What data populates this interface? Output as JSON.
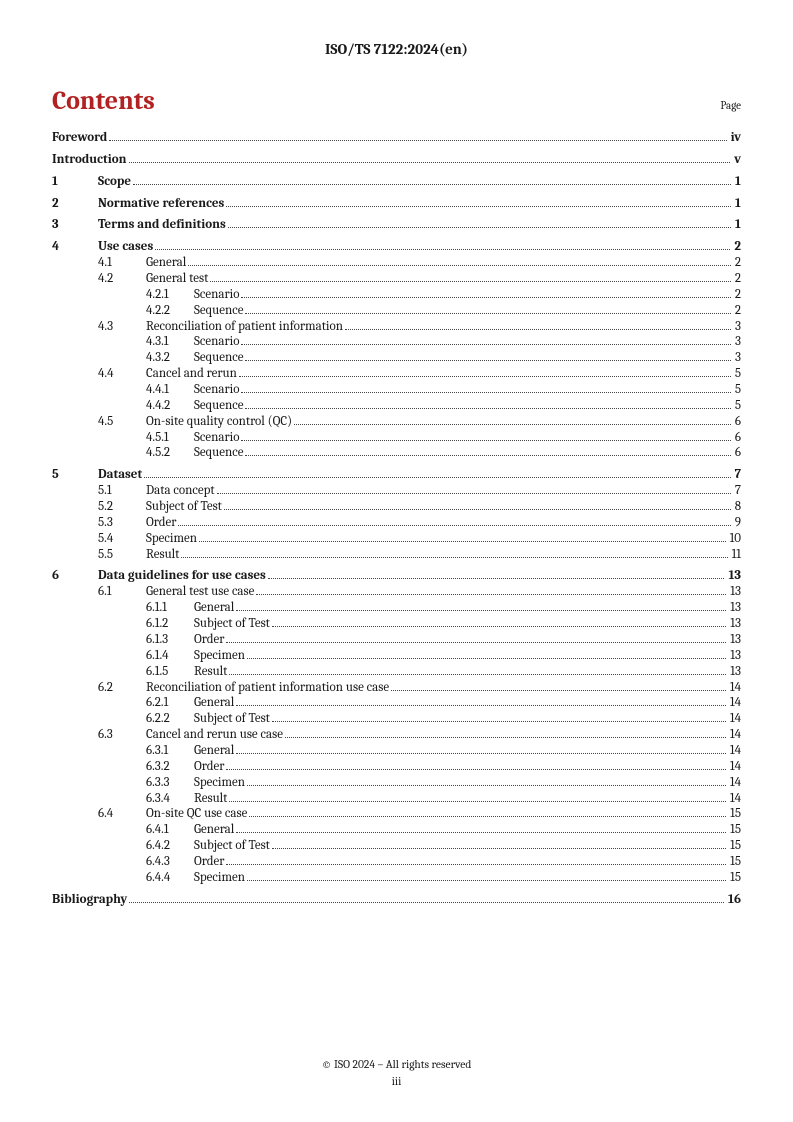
{
  "header": "ISO/TS 7122:2024(en)",
  "contents_title": "Contents",
  "page_label": "Page",
  "footer_line1": "© ISO 2024 – All rights reserved",
  "footer_line2": "iii",
  "indent_cols": [
    0,
    46,
    94,
    140
  ],
  "toc": [
    {
      "level": 0,
      "num": "",
      "text": "Foreword",
      "page": "iv",
      "bold": true,
      "space_before": 0
    },
    {
      "level": 0,
      "num": "",
      "text": "Introduction",
      "page": "v",
      "bold": true,
      "space_before": 6
    },
    {
      "level": 0,
      "num": "1",
      "text": "Scope",
      "page": "1",
      "bold": true,
      "space_before": 6
    },
    {
      "level": 0,
      "num": "2",
      "text": "Normative references",
      "page": "1",
      "bold": true,
      "space_before": 6
    },
    {
      "level": 0,
      "num": "3",
      "text": "Terms and definitions",
      "page": "1",
      "bold": true,
      "space_before": 6
    },
    {
      "level": 0,
      "num": "4",
      "text": "Use cases",
      "page": "2",
      "bold": true,
      "space_before": 6
    },
    {
      "level": 1,
      "num": "4.1",
      "text": "General",
      "page": "2",
      "bold": false,
      "space_before": 0
    },
    {
      "level": 1,
      "num": "4.2",
      "text": "General test",
      "page": "2",
      "bold": false,
      "space_before": 0
    },
    {
      "level": 2,
      "num": "4.2.1",
      "text": "Scenario",
      "page": "2",
      "bold": false,
      "space_before": 0
    },
    {
      "level": 2,
      "num": "4.2.2",
      "text": "Sequence",
      "page": "2",
      "bold": false,
      "space_before": 0
    },
    {
      "level": 1,
      "num": "4.3",
      "text": "Reconciliation of patient information",
      "page": "3",
      "bold": false,
      "space_before": 0
    },
    {
      "level": 2,
      "num": "4.3.1",
      "text": "Scenario",
      "page": "3",
      "bold": false,
      "space_before": 0
    },
    {
      "level": 2,
      "num": "4.3.2",
      "text": "Sequence",
      "page": "3",
      "bold": false,
      "space_before": 0
    },
    {
      "level": 1,
      "num": "4.4",
      "text": "Cancel and rerun",
      "page": "5",
      "bold": false,
      "space_before": 0
    },
    {
      "level": 2,
      "num": "4.4.1",
      "text": "Scenario",
      "page": "5",
      "bold": false,
      "space_before": 0
    },
    {
      "level": 2,
      "num": "4.4.2",
      "text": "Sequence",
      "page": "5",
      "bold": false,
      "space_before": 0
    },
    {
      "level": 1,
      "num": "4.5",
      "text": "On-site quality control (QC)",
      "page": "6",
      "bold": false,
      "space_before": 0
    },
    {
      "level": 2,
      "num": "4.5.1",
      "text": "Scenario",
      "page": "6",
      "bold": false,
      "space_before": 0
    },
    {
      "level": 2,
      "num": "4.5.2",
      "text": "Sequence",
      "page": "6",
      "bold": false,
      "space_before": 0
    },
    {
      "level": 0,
      "num": "5",
      "text": "Dataset",
      "page": "7",
      "bold": true,
      "space_before": 6
    },
    {
      "level": 1,
      "num": "5.1",
      "text": "Data concept",
      "page": "7",
      "bold": false,
      "space_before": 0
    },
    {
      "level": 1,
      "num": "5.2",
      "text": "Subject of Test",
      "page": "8",
      "bold": false,
      "space_before": 0
    },
    {
      "level": 1,
      "num": "5.3",
      "text": "Order",
      "page": "9",
      "bold": false,
      "space_before": 0
    },
    {
      "level": 1,
      "num": "5.4",
      "text": "Specimen",
      "page": "10",
      "bold": false,
      "space_before": 0
    },
    {
      "level": 1,
      "num": "5.5",
      "text": "Result",
      "page": "11",
      "bold": false,
      "space_before": 0
    },
    {
      "level": 0,
      "num": "6",
      "text": "Data guidelines for use cases",
      "page": "13",
      "bold": true,
      "space_before": 6
    },
    {
      "level": 1,
      "num": "6.1",
      "text": "General test use case",
      "page": "13",
      "bold": false,
      "space_before": 0
    },
    {
      "level": 2,
      "num": "6.1.1",
      "text": "General",
      "page": "13",
      "bold": false,
      "space_before": 0
    },
    {
      "level": 2,
      "num": "6.1.2",
      "text": "Subject of Test",
      "page": "13",
      "bold": false,
      "space_before": 0
    },
    {
      "level": 2,
      "num": "6.1.3",
      "text": "Order",
      "page": "13",
      "bold": false,
      "space_before": 0
    },
    {
      "level": 2,
      "num": "6.1.4",
      "text": "Specimen",
      "page": "13",
      "bold": false,
      "space_before": 0
    },
    {
      "level": 2,
      "num": "6.1.5",
      "text": "Result",
      "page": "13",
      "bold": false,
      "space_before": 0
    },
    {
      "level": 1,
      "num": "6.2",
      "text": "Reconciliation of patient information use case",
      "page": "14",
      "bold": false,
      "space_before": 0
    },
    {
      "level": 2,
      "num": "6.2.1",
      "text": "General",
      "page": "14",
      "bold": false,
      "space_before": 0
    },
    {
      "level": 2,
      "num": "6.2.2",
      "text": "Subject of Test",
      "page": "14",
      "bold": false,
      "space_before": 0
    },
    {
      "level": 1,
      "num": "6.3",
      "text": "Cancel and rerun use case",
      "page": "14",
      "bold": false,
      "space_before": 0
    },
    {
      "level": 2,
      "num": "6.3.1",
      "text": "General",
      "page": "14",
      "bold": false,
      "space_before": 0
    },
    {
      "level": 2,
      "num": "6.3.2",
      "text": "Order",
      "page": "14",
      "bold": false,
      "space_before": 0
    },
    {
      "level": 2,
      "num": "6.3.3",
      "text": "Specimen",
      "page": "14",
      "bold": false,
      "space_before": 0
    },
    {
      "level": 2,
      "num": "6.3.4",
      "text": "Result",
      "page": "14",
      "bold": false,
      "space_before": 0
    },
    {
      "level": 1,
      "num": "6.4",
      "text": "On-site QC use case",
      "page": "15",
      "bold": false,
      "space_before": 0
    },
    {
      "level": 2,
      "num": "6.4.1",
      "text": "General",
      "page": "15",
      "bold": false,
      "space_before": 0
    },
    {
      "level": 2,
      "num": "6.4.2",
      "text": "Subject of Test",
      "page": "15",
      "bold": false,
      "space_before": 0
    },
    {
      "level": 2,
      "num": "6.4.3",
      "text": "Order",
      "page": "15",
      "bold": false,
      "space_before": 0
    },
    {
      "level": 2,
      "num": "6.4.4",
      "text": "Specimen",
      "page": "15",
      "bold": false,
      "space_before": 0
    },
    {
      "level": 0,
      "num": "",
      "text": "Bibliography",
      "page": "16",
      "bold": true,
      "space_before": 6
    }
  ]
}
